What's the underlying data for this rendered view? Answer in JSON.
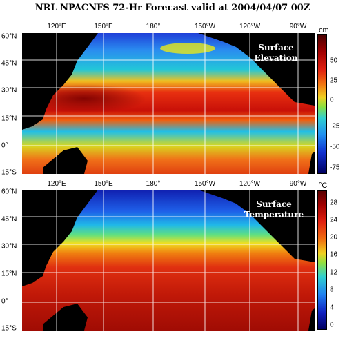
{
  "title": "NRL NPACNFS 72-Hr Forecast valid at 2004/04/07 00Z",
  "lon_ticks": [
    "120°E",
    "150°E",
    "180°",
    "150°W",
    "120°W",
    "90°W"
  ],
  "lat_ticks": [
    "60°N",
    "45°N",
    "30°N",
    "15°N",
    "0°",
    "15°S"
  ],
  "panels": [
    {
      "label_line1": "Surface",
      "label_line2": "Elevation",
      "unit": "cm",
      "colorbar_ticks": [
        "50",
        "25",
        "0",
        "-25",
        "-50",
        "-75"
      ],
      "colors": {
        "high": "#8b0000",
        "mid": "#ffff00",
        "low": "#000080"
      }
    },
    {
      "label_line1": "Surface",
      "label_line2": "Temperature",
      "unit": "°C",
      "colorbar_ticks": [
        "28",
        "24",
        "20",
        "16",
        "12",
        "8",
        "4",
        "0"
      ],
      "colors": {
        "high": "#8b0000",
        "mid": "#ffff00",
        "low": "#000080"
      }
    }
  ]
}
